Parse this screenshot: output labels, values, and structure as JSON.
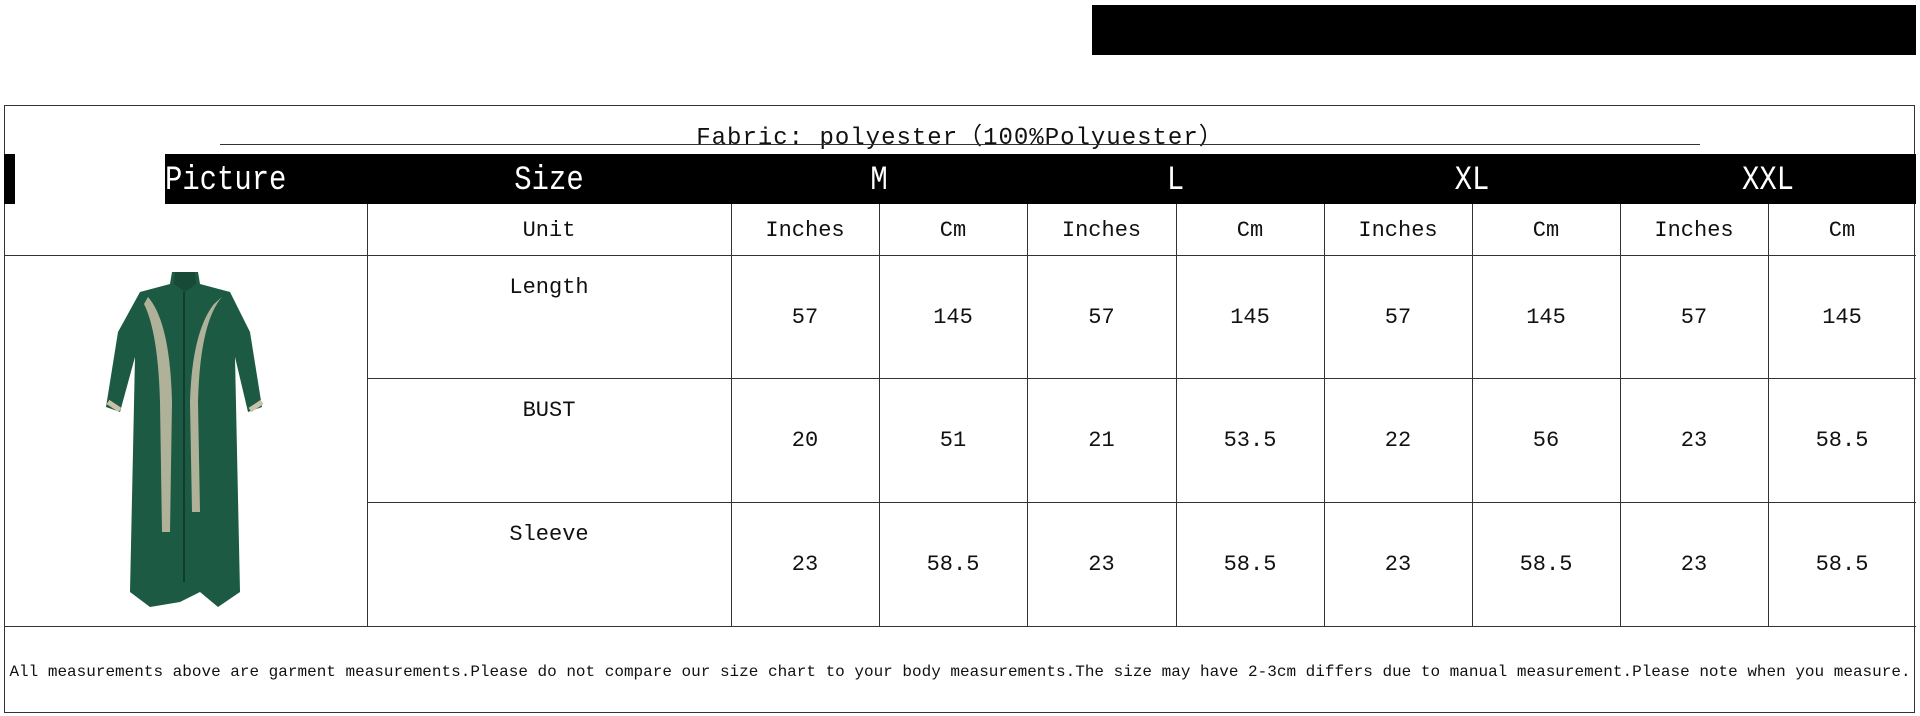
{
  "title": "Fabric: polyester（100%Polyuester）",
  "header": {
    "picture": "Picture",
    "size": "Size",
    "sizes": [
      "M",
      "L",
      "XL",
      "XXL"
    ]
  },
  "unit_row": {
    "label": "Unit",
    "units": [
      "Inches",
      "Cm",
      "Inches",
      "Cm",
      "Inches",
      "Cm",
      "Inches",
      "Cm"
    ]
  },
  "rows": [
    {
      "label": "Length",
      "values": [
        "57",
        "145",
        "57",
        "145",
        "57",
        "145",
        "57",
        "145"
      ]
    },
    {
      "label": "BUST",
      "values": [
        "20",
        "51",
        "21",
        "53.5",
        "22",
        "56",
        "23",
        "58.5"
      ]
    },
    {
      "label": "Sleeve",
      "values": [
        "23",
        "58.5",
        "23",
        "58.5",
        "23",
        "58.5",
        "23",
        "58.5"
      ]
    }
  ],
  "footer": "All measurements above are garment measurements.Please do not compare our size chart to your body measurements.The size may have 2-3cm differs due to manual measurement.Please note when you measure.",
  "colors": {
    "dress": "#1d5a43",
    "embroidery": "#c9c2a8",
    "header_bg": "#000000"
  }
}
